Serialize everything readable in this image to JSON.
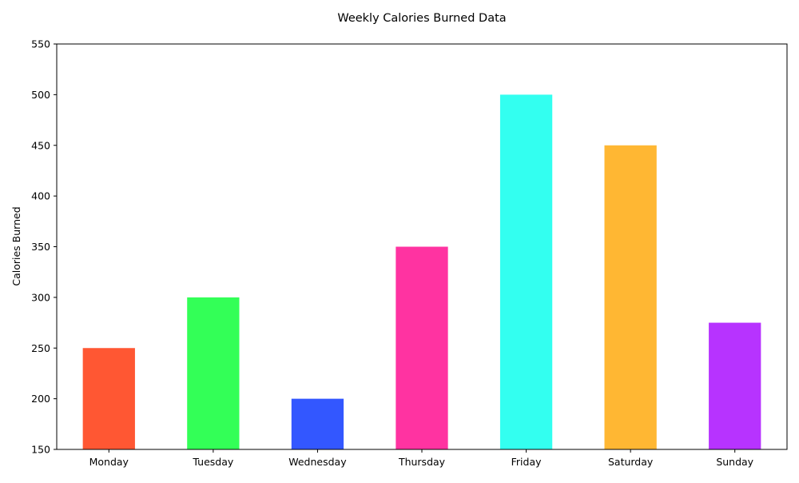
{
  "chart_data": {
    "type": "bar",
    "title": "Weekly Calories Burned Data",
    "xlabel": "",
    "ylabel": "Calories Burned",
    "categories": [
      "Monday",
      "Tuesday",
      "Wednesday",
      "Thursday",
      "Friday",
      "Saturday",
      "Sunday"
    ],
    "values": [
      250,
      300,
      200,
      350,
      500,
      450,
      275
    ],
    "colors": [
      "#FF5733",
      "#33FF57",
      "#3357FF",
      "#FF33A1",
      "#33FFF0",
      "#FFB733",
      "#B733FF"
    ],
    "ylim": [
      150,
      550
    ],
    "yticks": [
      150,
      200,
      250,
      300,
      350,
      400,
      450,
      500,
      550
    ],
    "grid": false,
    "legend": "none"
  }
}
